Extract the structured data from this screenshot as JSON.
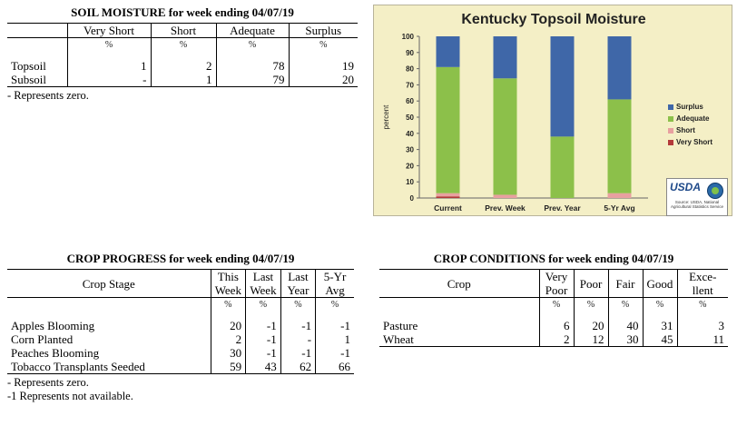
{
  "soil_moisture": {
    "title": "SOIL MOISTURE for week ending 04/07/19",
    "headers": [
      "",
      "Very Short",
      "Short",
      "Adequate",
      "Surplus"
    ],
    "units": [
      "",
      "%",
      "%",
      "%",
      "%"
    ],
    "rows": [
      [
        "Topsoil",
        "1",
        "2",
        "78",
        "19"
      ],
      [
        "Subsoil",
        "-",
        "1",
        "79",
        "20"
      ]
    ],
    "notes": [
      "- Represents zero."
    ]
  },
  "crop_progress": {
    "title": "CROP PROGRESS for week ending 04/07/19",
    "headers": [
      [
        "Crop Stage"
      ],
      [
        "This",
        "Week"
      ],
      [
        "Last",
        "Week"
      ],
      [
        "Last",
        "Year"
      ],
      [
        "5-Yr",
        "Avg"
      ]
    ],
    "units": [
      "",
      "%",
      "%",
      "%",
      "%"
    ],
    "rows": [
      [
        "Apples Blooming",
        "20",
        "-1",
        "-1",
        "-1"
      ],
      [
        "Corn Planted",
        "2",
        "-1",
        "-",
        "1"
      ],
      [
        "Peaches Blooming",
        "30",
        "-1",
        "-1",
        "-1"
      ],
      [
        "Tobacco Transplants Seeded",
        "59",
        "43",
        "62",
        "66"
      ]
    ],
    "notes": [
      "- Represents zero.",
      "-1 Represents not available."
    ]
  },
  "crop_conditions": {
    "title": "CROP CONDITIONS for week ending 04/07/19",
    "headers": [
      [
        "Crop"
      ],
      [
        "Very",
        "Poor"
      ],
      [
        "Poor"
      ],
      [
        "Fair"
      ],
      [
        "Good"
      ],
      [
        "Exce-",
        "llent"
      ]
    ],
    "units": [
      "",
      "%",
      "%",
      "%",
      "%",
      "%"
    ],
    "rows": [
      [
        "Pasture",
        "6",
        "20",
        "40",
        "31",
        "3"
      ],
      [
        "Wheat",
        "2",
        "12",
        "30",
        "45",
        "11"
      ]
    ]
  },
  "chart_data": {
    "type": "bar",
    "stacked": true,
    "title": "Kentucky Topsoil Moisture",
    "ylabel": "percent",
    "xlabel": "",
    "ylim": [
      0,
      100
    ],
    "yticks": [
      0,
      10,
      20,
      30,
      40,
      50,
      60,
      70,
      80,
      90,
      100
    ],
    "categories": [
      "Current",
      "Prev. Week",
      "Prev. Year",
      "5-Yr Avg"
    ],
    "series": [
      {
        "name": "Very Short",
        "color": "#b33a3a",
        "values": [
          1,
          0,
          0,
          0
        ]
      },
      {
        "name": "Short",
        "color": "#e8a0a0",
        "values": [
          2,
          2,
          0,
          3
        ]
      },
      {
        "name": "Adequate",
        "color": "#8cc04a",
        "values": [
          78,
          72,
          38,
          58
        ]
      },
      {
        "name": "Surplus",
        "color": "#3f67a8",
        "values": [
          19,
          26,
          62,
          39
        ]
      }
    ],
    "legend_order": [
      "Surplus",
      "Adequate",
      "Short",
      "Very Short"
    ],
    "legend_position": "right",
    "grid": false,
    "logo_text": "USDA",
    "source_text": "Source: USDA, National Agricultural Statistics Service"
  }
}
